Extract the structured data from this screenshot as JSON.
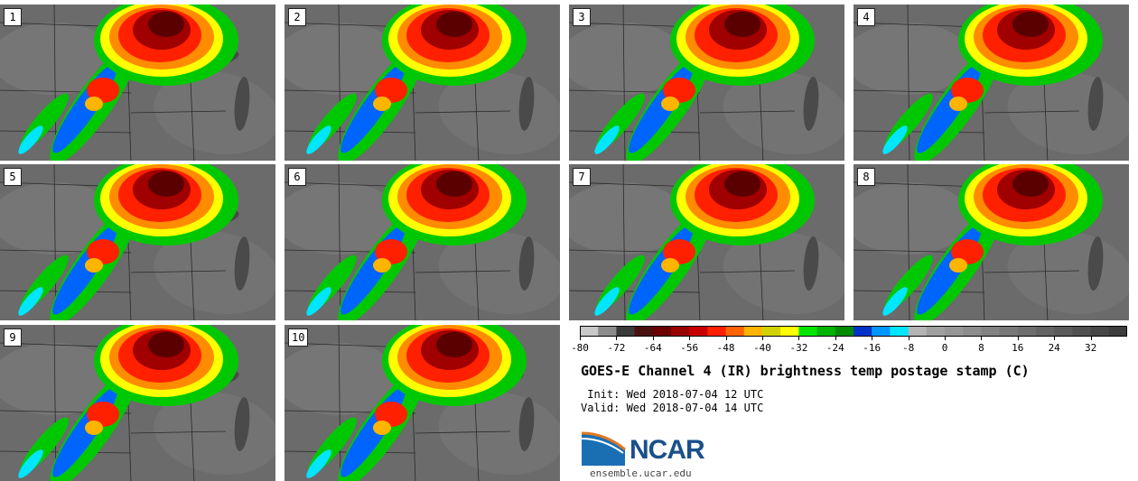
{
  "panels": [
    {
      "label": "1"
    },
    {
      "label": "2"
    },
    {
      "label": "3"
    },
    {
      "label": "4"
    },
    {
      "label": "5"
    },
    {
      "label": "6"
    },
    {
      "label": "7"
    },
    {
      "label": "8"
    },
    {
      "label": "9"
    },
    {
      "label": "10"
    }
  ],
  "colorbar": {
    "min": -80,
    "max": 40,
    "step": 4,
    "tick_labels": [
      "-80",
      "-72",
      "-64",
      "-56",
      "-48",
      "-40",
      "-32",
      "-24",
      "-16",
      "-8",
      "0",
      "8",
      "16",
      "24",
      "32"
    ],
    "colors": [
      "#c8c8c8",
      "#8c8c8c",
      "#3a3a3a",
      "#4a1010",
      "#6a0000",
      "#9a0000",
      "#c80000",
      "#ff2000",
      "#ff6400",
      "#ffb400",
      "#d2d200",
      "#ffff00",
      "#00e600",
      "#00b400",
      "#008c00",
      "#0032c8",
      "#0096ff",
      "#00e6ff",
      "#b4b4b4",
      "#a0a0a0",
      "#969696",
      "#8c8c8c",
      "#828282",
      "#787878",
      "#6e6e6e",
      "#646464",
      "#5a5a5a",
      "#505050",
      "#464646",
      "#3c3c3c"
    ]
  },
  "title": "GOES-E Channel 4 (IR) brightness temp postage stamp (C)",
  "init_text": " Init: Wed 2018-07-04 12 UTC",
  "valid_text": "Valid: Wed 2018-07-04 14 UTC",
  "logo": {
    "name": "NCAR",
    "url": "ensemble.ucar.edu"
  }
}
